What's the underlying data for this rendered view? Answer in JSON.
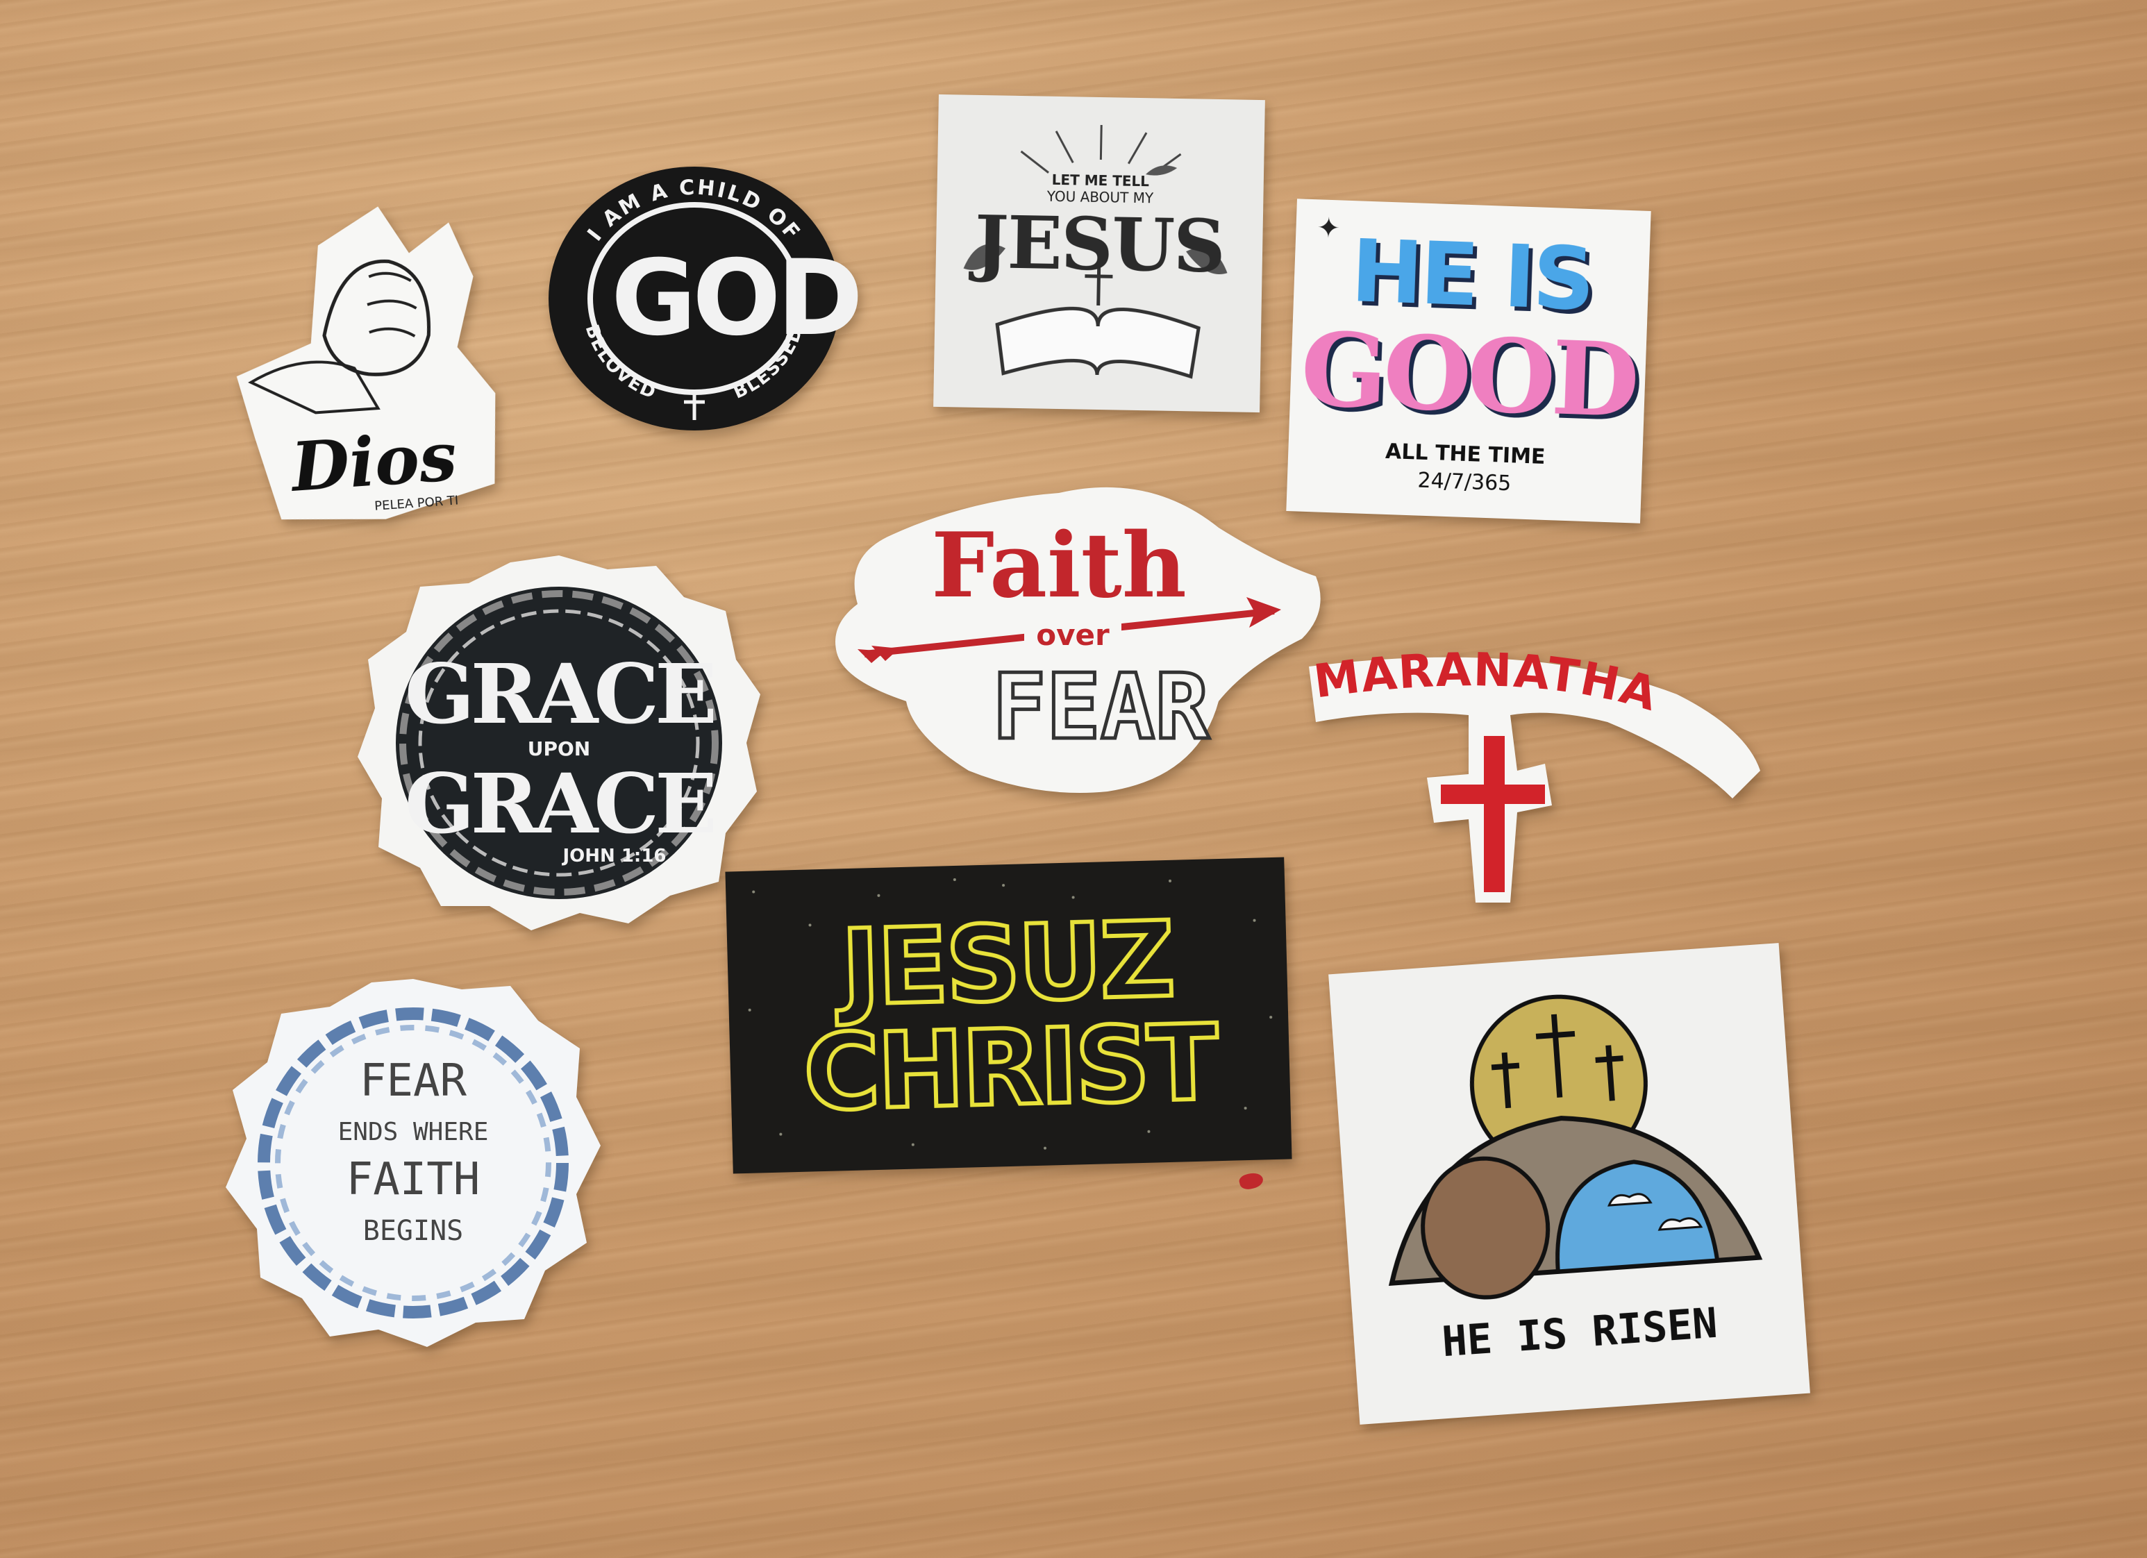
{
  "scene": {
    "background_color": "#c9996b",
    "stickers": {
      "dios": {
        "title": "Dios",
        "subtitle": "PELEA POR TI"
      },
      "god": {
        "top_text": "I AM A CHILD OF",
        "center": "GOD",
        "left_text": "BELOVED",
        "right_text": "BLESSED"
      },
      "jesus": {
        "line1": "LET ME TELL",
        "line2": "YOU ABOUT MY",
        "main": "JESUS"
      },
      "good": {
        "line1": "HE IS",
        "line2": "GOOD",
        "line3": "ALL THE TIME",
        "line4": "24/7/365"
      },
      "grace": {
        "word1": "GRACE",
        "middle": "UPON",
        "word2": "GRACE",
        "verse": "JOHN 1:16"
      },
      "faith": {
        "word1": "Faith",
        "middle": "over",
        "word2": "FEAR"
      },
      "maranatha": {
        "word": "MARANATHA"
      },
      "fear_ends": {
        "line1": "FEAR",
        "line2": "ENDS WHERE",
        "line3": "FAITH",
        "line4": "BEGINS"
      },
      "christ": {
        "line1": "JESUZ",
        "line2": "CHRIST"
      },
      "risen": {
        "caption": "HE IS RISEN"
      }
    }
  }
}
